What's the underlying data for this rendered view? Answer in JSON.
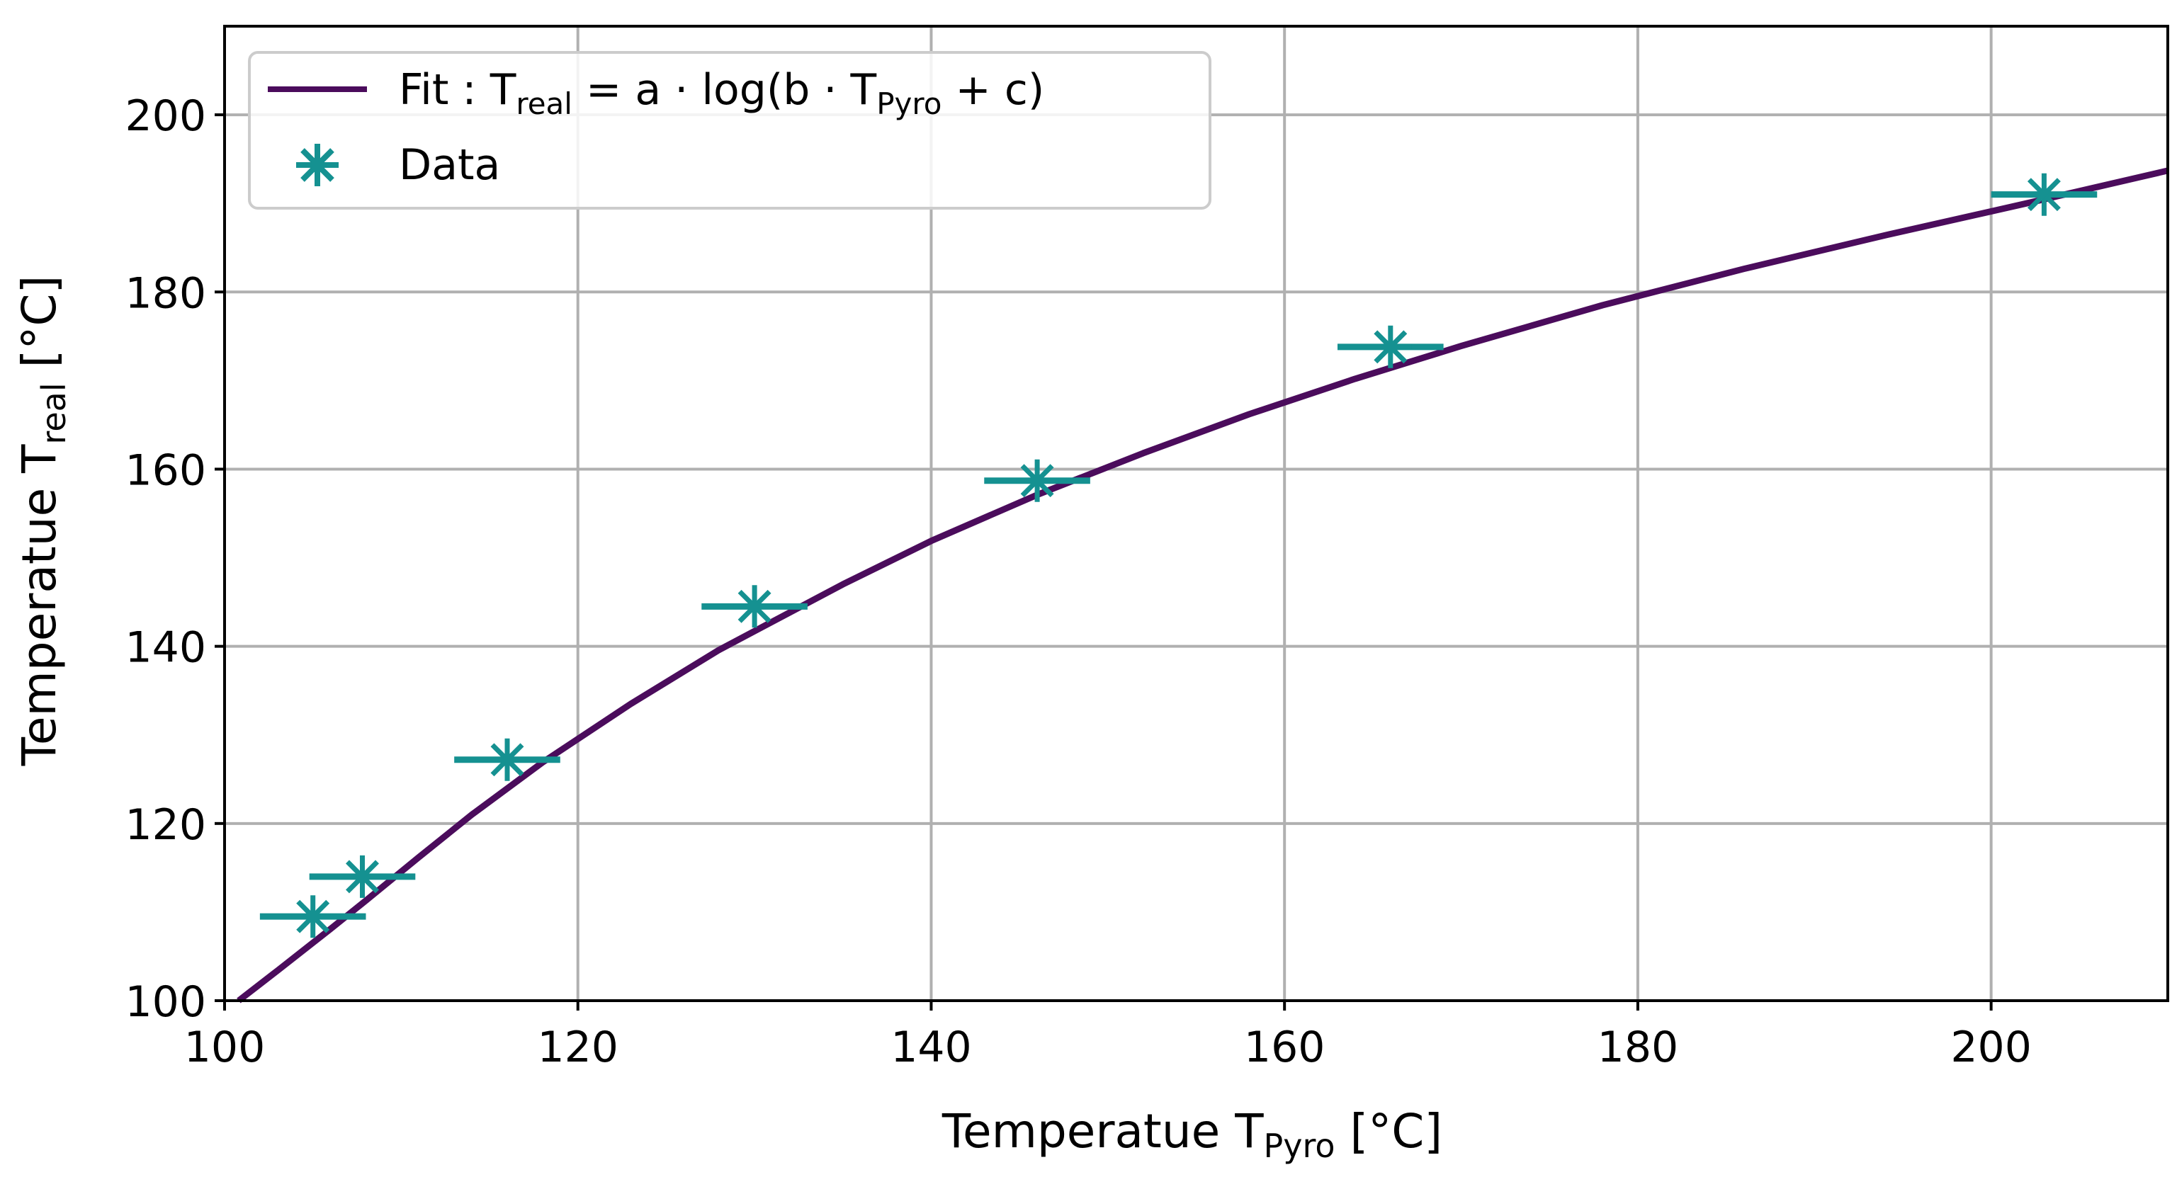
{
  "chart_data": {
    "type": "scatter",
    "title": "",
    "xlabel": {
      "main": "Temperatue T",
      "sub": "Pyro",
      "unit": " [°C]"
    },
    "ylabel": {
      "main": "Temperatue T",
      "sub": "real",
      "unit": " [°C]"
    },
    "xlim": [
      100,
      210
    ],
    "ylim": [
      100,
      210
    ],
    "grid": true,
    "x_ticks": [
      100,
      120,
      140,
      160,
      180,
      200
    ],
    "y_ticks": [
      100,
      120,
      140,
      160,
      180,
      200
    ],
    "x_tick_labels": [
      "100",
      "120",
      "140",
      "160",
      "180",
      "200"
    ],
    "y_tick_labels": [
      "100",
      "120",
      "140",
      "160",
      "180",
      "200"
    ],
    "legend_position": "upper-left",
    "series": [
      {
        "name": "Fit",
        "kind": "line",
        "color": "#4b0c5c",
        "legend": {
          "prefix": "Fit : T",
          "sub1": "real",
          "mid": " = a · log(b · T",
          "sub2": "Pyro",
          "suffix": " + c)"
        },
        "x": [
          100.8,
          103,
          106,
          108,
          111,
          114,
          118,
          123,
          128,
          135,
          140,
          146,
          152,
          158,
          164,
          170,
          178,
          186,
          194,
          202,
          210
        ],
        "y": [
          100,
          103.4,
          108.1,
          111.3,
          116.2,
          121,
          126.9,
          133.5,
          139.6,
          147,
          151.9,
          157.1,
          161.8,
          166.2,
          170.2,
          173.9,
          178.5,
          182.6,
          186.4,
          190,
          193.7
        ]
      },
      {
        "name": "Data",
        "kind": "scatter",
        "marker": "asterisk",
        "color": "#159191",
        "legend": {
          "label": "Data"
        },
        "x": [
          105.0,
          107.8,
          116.0,
          130.0,
          146.0,
          166.0,
          203.0
        ],
        "y": [
          109.5,
          114.0,
          127.2,
          144.5,
          158.7,
          173.8,
          191.0
        ],
        "x_err": [
          3,
          3,
          3,
          3,
          3,
          3,
          3
        ]
      }
    ]
  }
}
